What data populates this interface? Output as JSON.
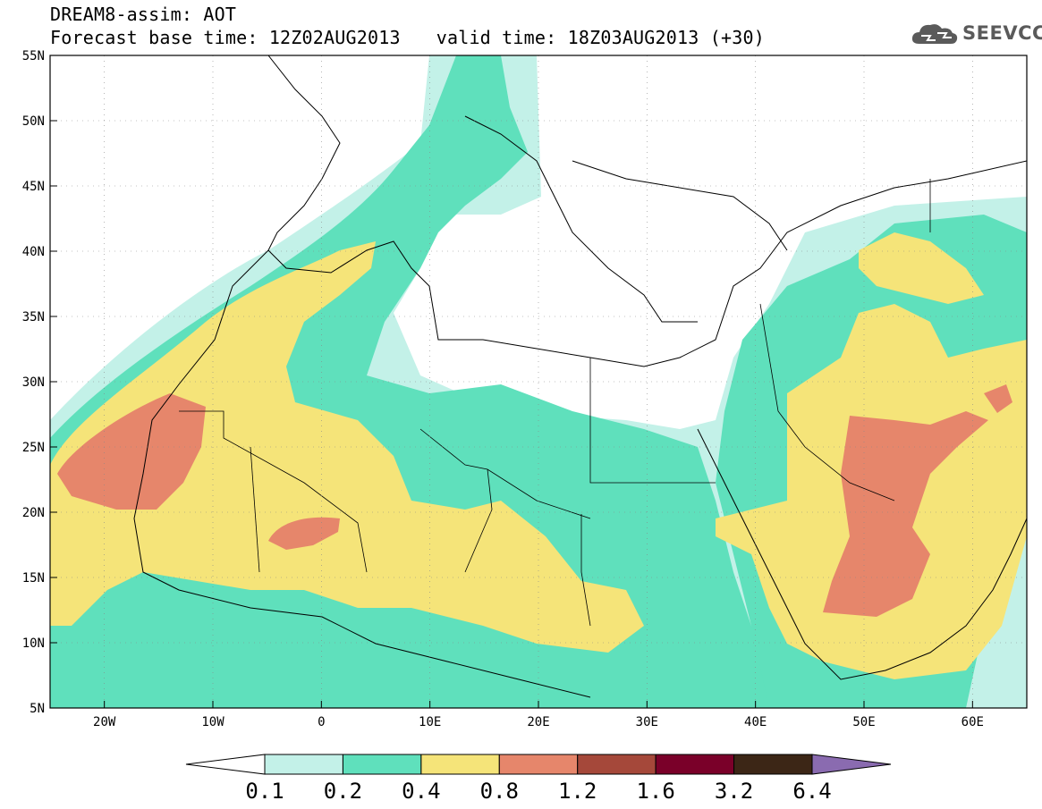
{
  "title": {
    "line1": "DREAM8-assim: AOT",
    "base_time": "Forecast base time: 12Z02AUG2013",
    "valid_time": "valid time: 18Z03AUG2013 (+30)"
  },
  "logo": {
    "text": "SEEVCCC",
    "icon": "cloud-icon"
  },
  "axes": {
    "lon_labels": [
      "20W",
      "10W",
      "0",
      "10E",
      "20E",
      "30E",
      "40E",
      "50E",
      "60E"
    ],
    "lat_labels": [
      "55N",
      "50N",
      "45N",
      "40N",
      "35N",
      "30N",
      "25N",
      "20N",
      "15N",
      "10N",
      "5N"
    ]
  },
  "colorbar": {
    "labels": [
      "0.1",
      "0.2",
      "0.4",
      "0.8",
      "1.2",
      "1.6",
      "3.2",
      "6.4"
    ],
    "colors": [
      "#ffffff",
      "#c3f1e8",
      "#5fe0bc",
      "#f5e479",
      "#e6866b",
      "#a5483a",
      "#7a0029",
      "#3c2616",
      "#8a6bb0"
    ]
  },
  "chart_data": {
    "type": "heatmap",
    "variable": "AOT",
    "xlim": [
      -25,
      65
    ],
    "ylim": [
      5,
      55
    ],
    "levels": [
      0.1,
      0.2,
      0.4,
      0.8,
      1.2,
      1.6,
      3.2,
      6.4
    ],
    "grid": true
  }
}
